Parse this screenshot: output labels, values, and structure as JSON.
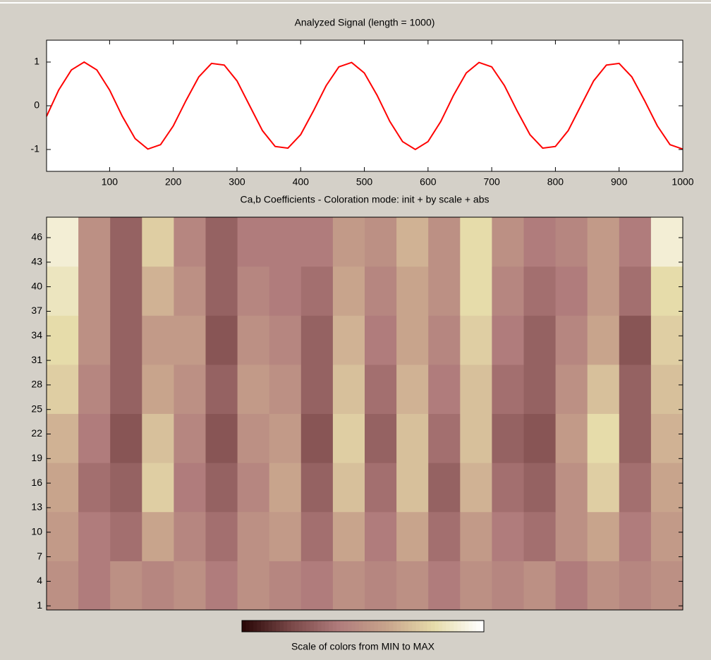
{
  "chart_data": [
    {
      "type": "line",
      "title": "Analyzed Signal (length = 1000)",
      "color": "#ff0000",
      "x": [
        1,
        20,
        40,
        60,
        80,
        100,
        120,
        140,
        160,
        180,
        200,
        220,
        240,
        260,
        280,
        300,
        320,
        340,
        360,
        380,
        400,
        420,
        440,
        460,
        480,
        500,
        520,
        540,
        560,
        580,
        600,
        620,
        640,
        660,
        680,
        700,
        720,
        740,
        760,
        780,
        800,
        820,
        840,
        860,
        880,
        900,
        920,
        940,
        960,
        980,
        1000
      ],
      "values": [
        -0.24,
        0.36,
        0.82,
        1.0,
        0.82,
        0.36,
        -0.24,
        -0.75,
        -0.99,
        -0.89,
        -0.46,
        0.12,
        0.66,
        0.97,
        0.93,
        0.57,
        0.0,
        -0.57,
        -0.93,
        -0.97,
        -0.66,
        -0.12,
        0.46,
        0.89,
        0.99,
        0.75,
        0.24,
        -0.36,
        -0.82,
        -1.0,
        -0.82,
        -0.36,
        0.24,
        0.75,
        0.99,
        0.89,
        0.46,
        -0.12,
        -0.66,
        -0.97,
        -0.93,
        -0.57,
        0.0,
        0.57,
        0.93,
        0.97,
        0.66,
        0.12,
        -0.46,
        -0.89,
        -0.99
      ],
      "xlim": [
        1,
        1000
      ],
      "xticks": [
        100,
        200,
        300,
        400,
        500,
        600,
        700,
        800,
        900,
        1000
      ],
      "ylim": [
        -1.5,
        1.5
      ],
      "yticks": [
        -1,
        0,
        1
      ]
    },
    {
      "type": "heatmap",
      "title": "Ca,b Coefficients - Coloration mode: init + by scale + abs",
      "colorbar_label": "Scale of colors from MIN to MAX",
      "colormap": [
        "#2a0808",
        "#7a4848",
        "#b07c7c",
        "#c8a48c",
        "#e6dcaa",
        "#ffffff"
      ],
      "xbins": [
        0,
        50,
        100,
        150,
        200,
        250,
        300,
        350,
        400,
        450,
        500,
        550,
        600,
        650,
        700,
        750,
        800,
        850,
        900,
        950,
        1000
      ],
      "ybins": [
        0.5,
        6.5,
        12.5,
        18.5,
        24.5,
        30.5,
        36.5,
        42.5,
        48.5
      ],
      "xlim": [
        0,
        1000
      ],
      "ylim": [
        0.5,
        48.5
      ],
      "yticks": [
        1,
        4,
        7,
        10,
        13,
        16,
        19,
        22,
        25,
        28,
        31,
        34,
        37,
        40,
        43,
        46
      ],
      "z": [
        [
          0.5,
          0.4,
          0.5,
          0.45,
          0.5,
          0.4,
          0.5,
          0.45,
          0.4,
          0.5,
          0.45,
          0.5,
          0.4,
          0.5,
          0.45,
          0.5,
          0.4,
          0.5,
          0.45,
          0.5
        ],
        [
          0.55,
          0.4,
          0.35,
          0.6,
          0.45,
          0.35,
          0.5,
          0.55,
          0.35,
          0.6,
          0.4,
          0.6,
          0.35,
          0.55,
          0.4,
          0.35,
          0.5,
          0.6,
          0.4,
          0.55
        ],
        [
          0.6,
          0.35,
          0.3,
          0.75,
          0.4,
          0.3,
          0.45,
          0.6,
          0.3,
          0.7,
          0.35,
          0.7,
          0.3,
          0.65,
          0.35,
          0.3,
          0.5,
          0.75,
          0.35,
          0.6
        ],
        [
          0.65,
          0.4,
          0.25,
          0.7,
          0.45,
          0.25,
          0.5,
          0.55,
          0.25,
          0.75,
          0.3,
          0.7,
          0.35,
          0.7,
          0.3,
          0.25,
          0.55,
          0.8,
          0.3,
          0.65
        ],
        [
          0.75,
          0.45,
          0.3,
          0.6,
          0.5,
          0.3,
          0.55,
          0.5,
          0.3,
          0.7,
          0.35,
          0.65,
          0.4,
          0.7,
          0.35,
          0.3,
          0.5,
          0.7,
          0.3,
          0.7
        ],
        [
          0.8,
          0.5,
          0.3,
          0.55,
          0.55,
          0.25,
          0.5,
          0.45,
          0.3,
          0.65,
          0.4,
          0.6,
          0.45,
          0.75,
          0.4,
          0.3,
          0.45,
          0.6,
          0.25,
          0.75
        ],
        [
          0.85,
          0.5,
          0.3,
          0.65,
          0.5,
          0.3,
          0.45,
          0.4,
          0.35,
          0.6,
          0.45,
          0.6,
          0.5,
          0.8,
          0.45,
          0.35,
          0.4,
          0.55,
          0.35,
          0.8
        ],
        [
          0.9,
          0.5,
          0.3,
          0.75,
          0.45,
          0.3,
          0.4,
          0.4,
          0.4,
          0.55,
          0.5,
          0.65,
          0.5,
          0.8,
          0.5,
          0.4,
          0.45,
          0.55,
          0.4,
          0.9
        ]
      ]
    }
  ]
}
